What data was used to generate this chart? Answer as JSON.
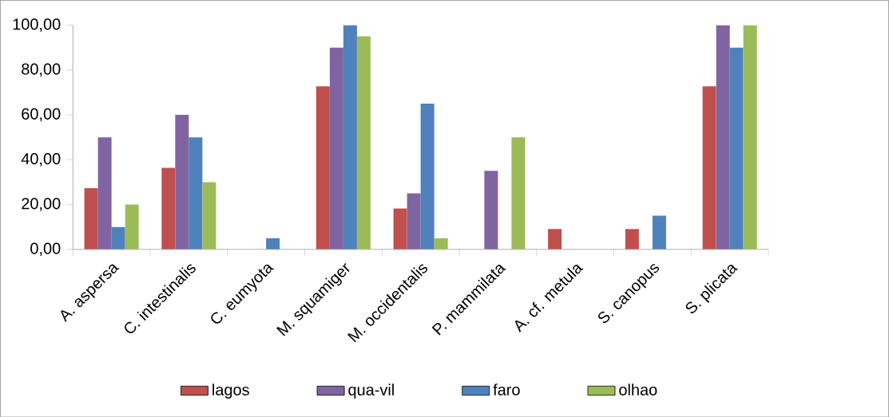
{
  "chart_data": {
    "type": "bar",
    "categories": [
      "A. aspersa",
      "C. intestinalis",
      "C. eumyota",
      "M. squamiger",
      "M. occidentalis",
      "P. mammilata",
      "A. cf. metula",
      "S. canopus",
      "S. plicata"
    ],
    "series": [
      {
        "name": "lagos",
        "color": "#c0504d",
        "values": [
          27.3,
          36.4,
          0,
          72.7,
          18.2,
          0,
          9.1,
          9.1,
          72.7
        ]
      },
      {
        "name": "qua-vil",
        "color": "#8064a2",
        "values": [
          50,
          60,
          0,
          90,
          25,
          35,
          0,
          0,
          100
        ]
      },
      {
        "name": "faro",
        "color": "#4f81bd",
        "values": [
          10,
          50,
          5,
          100,
          65,
          0,
          0,
          15,
          90
        ]
      },
      {
        "name": "olhao",
        "color": "#9bbb59",
        "values": [
          20,
          30,
          0,
          95,
          5,
          50,
          0,
          0,
          100
        ]
      }
    ],
    "ylim": [
      0,
      100
    ],
    "yticks": [
      {
        "value": 0,
        "label": "0,00"
      },
      {
        "value": 20,
        "label": "20,00"
      },
      {
        "value": 40,
        "label": "40,00"
      },
      {
        "value": 60,
        "label": "60,00"
      },
      {
        "value": 80,
        "label": "80,00"
      },
      {
        "value": 100,
        "label": "100,00"
      }
    ],
    "grid": false,
    "legend": "bottom"
  }
}
